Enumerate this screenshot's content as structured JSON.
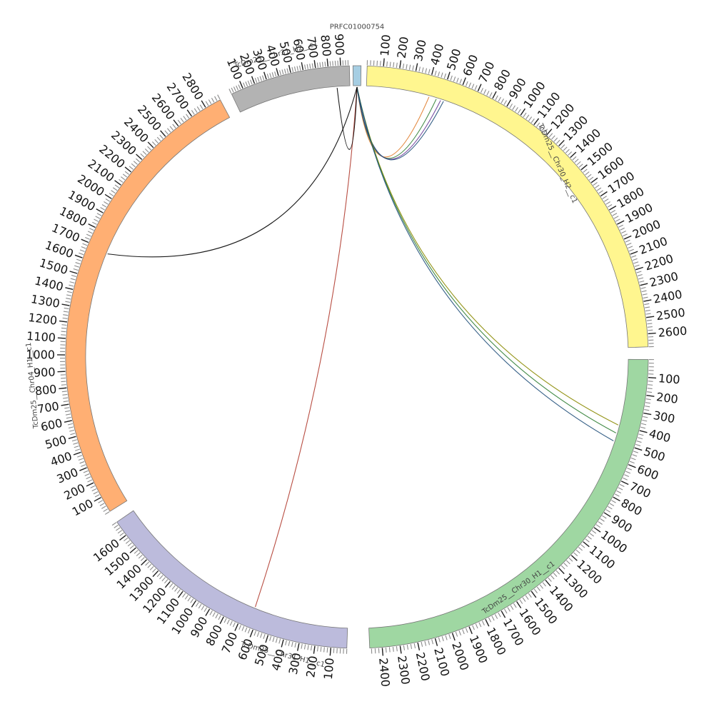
{
  "chromosomes": [
    {
      "id": "contig",
      "label": "PRFC01000754",
      "length": 30,
      "color": "#a6cee3",
      "ticks": []
    },
    {
      "id": "chr30h2",
      "label": "TcDm25__Chr30_H2__c1",
      "length": 2680,
      "color": "#fff68f",
      "ticks": [
        "100",
        "200",
        "300",
        "400",
        "500",
        "600",
        "700",
        "800",
        "900",
        "1000",
        "1100",
        "1200",
        "1300",
        "1400",
        "1500",
        "1600",
        "1700",
        "1800",
        "1900",
        "2000",
        "2100",
        "2200",
        "2300",
        "2400",
        "2500",
        "2600"
      ]
    },
    {
      "id": "chr30h1",
      "label": "TcDm25__Chr30_H1__c1",
      "length": 2470,
      "color": "#9fd7a2",
      "ticks": [
        "100",
        "200",
        "300",
        "400",
        "500",
        "600",
        "700",
        "800",
        "900",
        "1000",
        "1100",
        "1200",
        "1300",
        "1400",
        "1500",
        "1600",
        "1700",
        "1800",
        "1900",
        "2000",
        "2100",
        "2200",
        "2300",
        "2400"
      ]
    },
    {
      "id": "chr31h1",
      "label": "TcDm25__Chr31_H1__c1",
      "length": 1700,
      "color": "#bcbbdc",
      "ticks": [
        "100",
        "200",
        "300",
        "400",
        "500",
        "600",
        "700",
        "800",
        "900",
        "1000",
        "1100",
        "1200",
        "1300",
        "1400",
        "1500",
        "1600"
      ]
    },
    {
      "id": "chr04h1",
      "label": "TcDm25__Chr04_H1__c1",
      "length": 2900,
      "color": "#ffaf73",
      "ticks": [
        "100",
        "200",
        "300",
        "400",
        "500",
        "600",
        "700",
        "800",
        "900",
        "1000",
        "1100",
        "1200",
        "1300",
        "1400",
        "1500",
        "1600",
        "1700",
        "1800",
        "1900",
        "2000",
        "2100",
        "2200",
        "2300",
        "2400",
        "2500",
        "2600",
        "2700",
        "2800"
      ]
    },
    {
      "id": "chr31h2",
      "label": "TcDm25__Chr31_H2__c1",
      "length": 970,
      "color": "#b3b3b3",
      "ticks": [
        "100",
        "200",
        "300",
        "400",
        "500",
        "600",
        "700",
        "800",
        "900"
      ]
    }
  ],
  "links": [
    {
      "from": "contig",
      "from_pos": 15,
      "to": "chr30h2",
      "to_pos": 420,
      "color": "#e07b2a"
    },
    {
      "from": "contig",
      "from_pos": 15,
      "to": "chr30h2",
      "to_pos": 470,
      "color": "#2e7d32"
    },
    {
      "from": "contig",
      "from_pos": 15,
      "to": "chr30h2",
      "to_pos": 500,
      "color": "#6a3d9a"
    },
    {
      "from": "contig",
      "from_pos": 15,
      "to": "chr30h2",
      "to_pos": 520,
      "color": "#1f4e79"
    },
    {
      "from": "contig",
      "from_pos": 15,
      "to": "chr30h1",
      "to_pos": 400,
      "color": "#8a8a00"
    },
    {
      "from": "contig",
      "from_pos": 15,
      "to": "chr30h1",
      "to_pos": 450,
      "color": "#2e7d32"
    },
    {
      "from": "contig",
      "from_pos": 15,
      "to": "chr30h1",
      "to_pos": 500,
      "color": "#1f4e79"
    },
    {
      "from": "contig",
      "from_pos": 15,
      "to": "chr31h1",
      "to_pos": 640,
      "color": "#b03a2e"
    },
    {
      "from": "contig",
      "from_pos": 15,
      "to": "chr04h1",
      "to_pos": 1680,
      "color": "#000000"
    },
    {
      "from": "contig",
      "from_pos": 15,
      "to": "chr31h2",
      "to_pos": 860,
      "color": "#000000"
    }
  ]
}
